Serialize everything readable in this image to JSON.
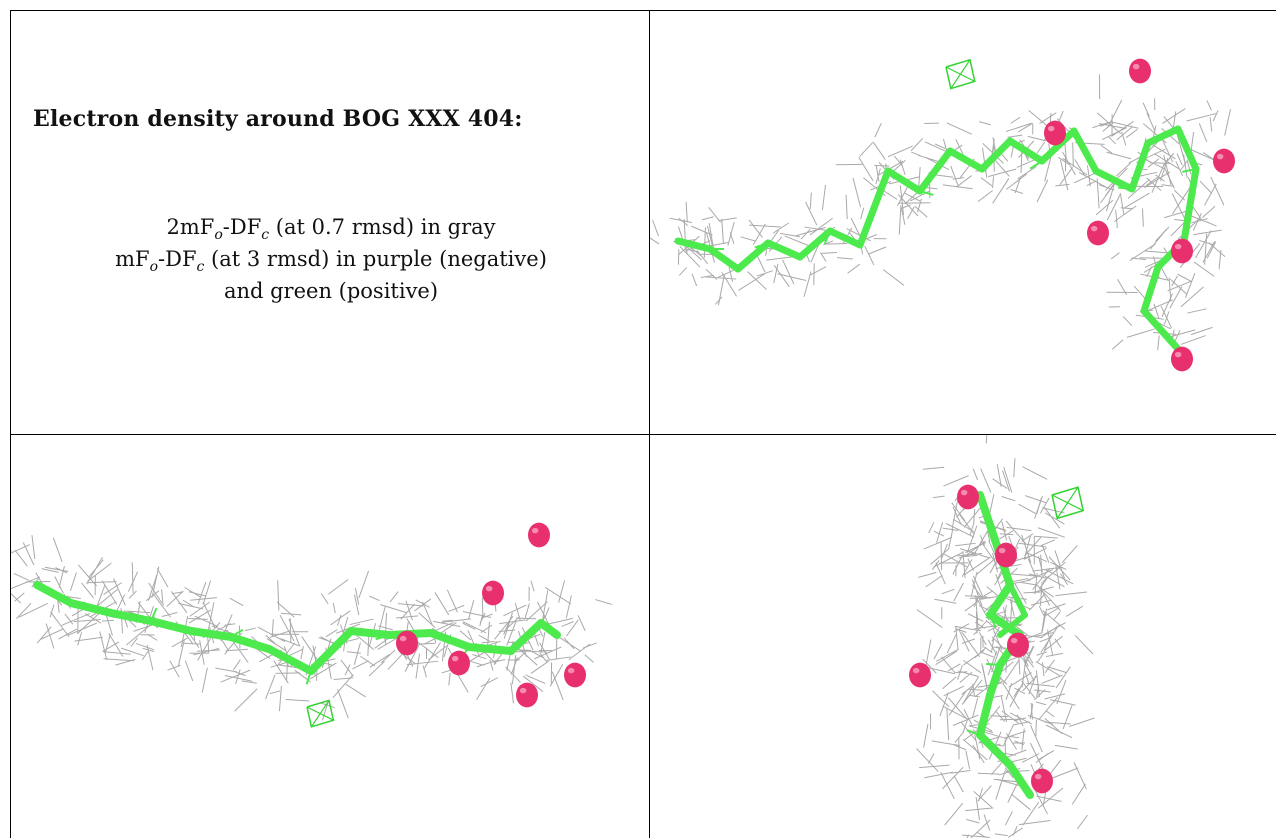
{
  "caption": {
    "title": "Electron density around BOG XXX 404:",
    "line1_prefix": "2mF",
    "line1_sub1": "o",
    "line1_mid": "-DF",
    "line1_sub2": "c",
    "line1_suffix": " (at 0.7 rmsd) in gray",
    "line2_prefix": "mF",
    "line2_sub1": "o",
    "line2_mid": "-DF",
    "line2_sub2": "c",
    "line2_suffix": " (at 3 rmsd) in purple (negative)",
    "line3": "and green (positive)"
  },
  "colors": {
    "mesh_gray": "#a9a9a9",
    "carbon_green": "#4dea4d",
    "oxygen_pink": "#e8306e",
    "positive_green_mesh": "#32d232"
  },
  "panels": [
    {
      "name": "view-side-top",
      "description_icon": "molecule-icon"
    },
    {
      "name": "view-side-bottom",
      "description_icon": "molecule-icon"
    },
    {
      "name": "view-end-on",
      "description_icon": "molecule-icon"
    }
  ]
}
